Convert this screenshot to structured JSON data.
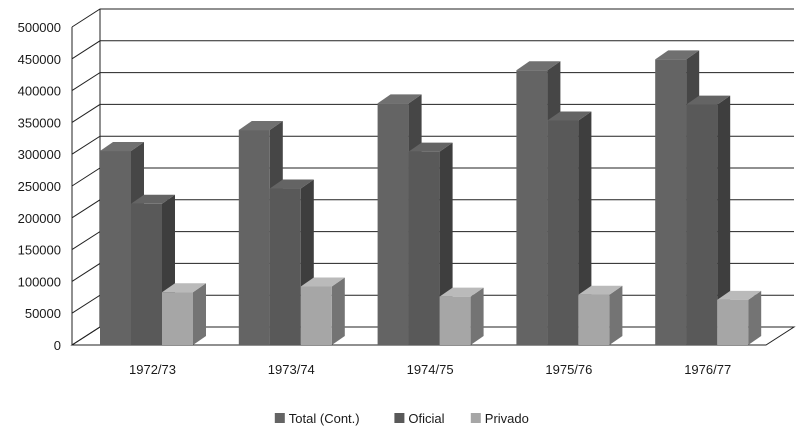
{
  "chart_data": {
    "type": "bar",
    "style": "3d-clustered-column",
    "categories": [
      "1972/73",
      "1973/74",
      "1974/75",
      "1975/76",
      "1976/77"
    ],
    "series": [
      {
        "name": "Total (Cont.)",
        "color": "#646464",
        "values": [
          305000,
          338000,
          380000,
          432000,
          449000
        ]
      },
      {
        "name": "Oficial",
        "color": "#595959",
        "values": [
          222000,
          246000,
          304000,
          353000,
          378000
        ]
      },
      {
        "name": "Privado",
        "color": "#a6a6a6",
        "values": [
          83000,
          92000,
          76000,
          79000,
          71000
        ]
      }
    ],
    "yticks": [
      "0",
      "50000",
      "100000",
      "150000",
      "200000",
      "250000",
      "300000",
      "350000",
      "400000",
      "450000",
      "500000"
    ],
    "ylim": [
      0,
      500000
    ],
    "grid": true,
    "legend_position": "bottom-center"
  }
}
